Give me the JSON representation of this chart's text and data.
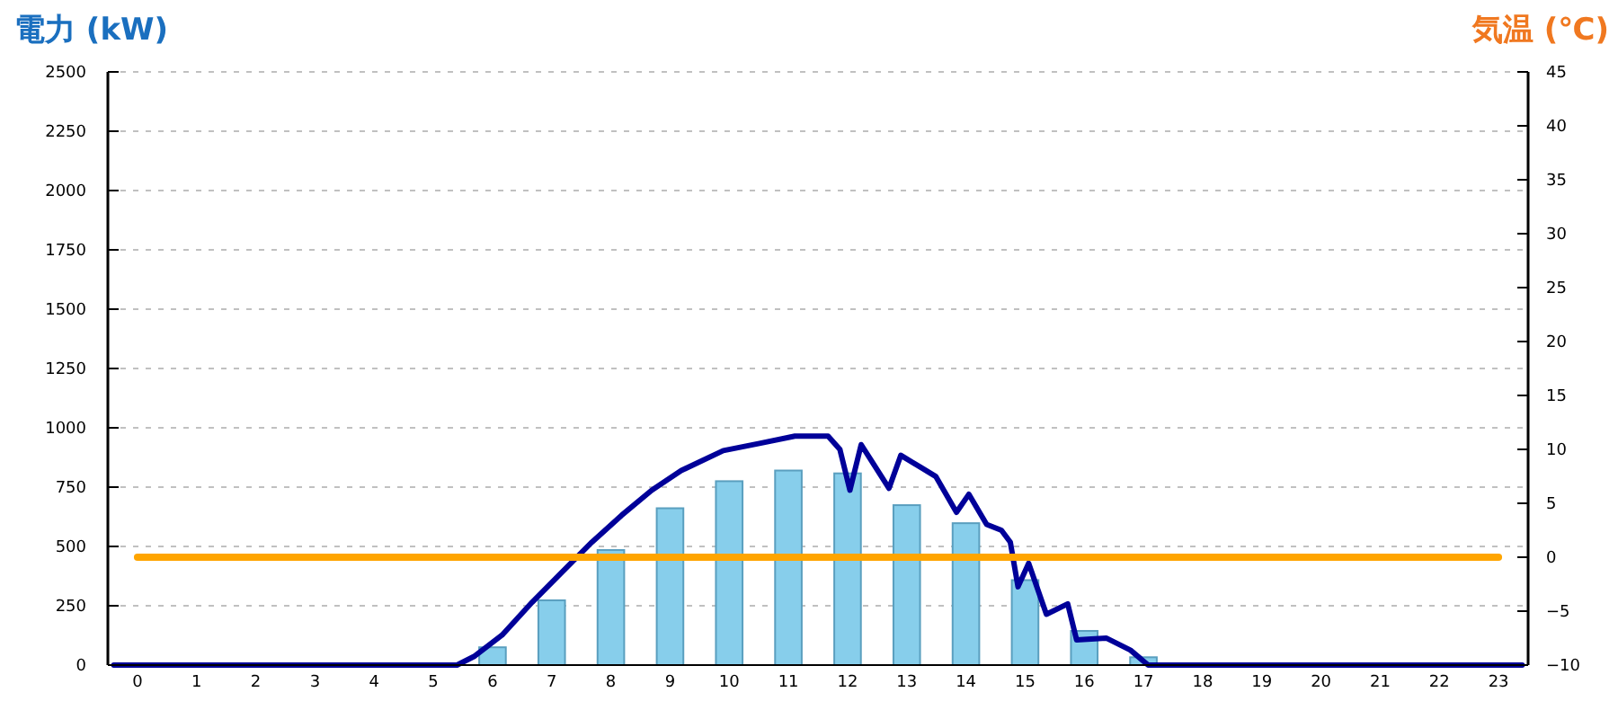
{
  "chart_data": {
    "type": "bar",
    "ylabel": "電力 (kW)",
    "y2label": "気温 (℃)",
    "x": [
      0,
      1,
      2,
      3,
      4,
      5,
      6,
      7,
      8,
      9,
      10,
      11,
      12,
      13,
      14,
      15,
      16,
      17,
      18,
      19,
      20,
      21,
      22,
      23
    ],
    "xlim": [
      -0.5,
      23.5
    ],
    "xticks": [
      0,
      1,
      2,
      3,
      4,
      5,
      6,
      7,
      8,
      9,
      10,
      11,
      12,
      13,
      14,
      15,
      16,
      17,
      18,
      19,
      20,
      21,
      22,
      23
    ],
    "ylim": [
      0,
      2500
    ],
    "yticks": [
      0,
      250,
      500,
      750,
      1000,
      1250,
      1500,
      1750,
      2000,
      2250,
      2500
    ],
    "y2lim": [
      -10,
      45
    ],
    "y2ticks": [
      {
        "value": -10,
        "label": "−10"
      },
      {
        "value": -5,
        "label": "−5"
      },
      0,
      5,
      10,
      15,
      20,
      25,
      30,
      35,
      40,
      45
    ],
    "grid": "y",
    "series": [
      {
        "color": "#87ceeb",
        "values": [
          0,
          0,
          0,
          0,
          0,
          0,
          75,
          273,
          485,
          661,
          775,
          820,
          808,
          674,
          598,
          358,
          144,
          33,
          0,
          0,
          0,
          0,
          0,
          0
        ]
      },
      {
        "type": "line",
        "color": "#000099",
        "x": [
          -0.4,
          5.4,
          5.7,
          6.16,
          6.67,
          7.17,
          7.68,
          8.18,
          8.69,
          9.19,
          9.9,
          10.51,
          11.11,
          11.67,
          11.87,
          12.04,
          12.23,
          12.7,
          12.9,
          13.24,
          13.49,
          13.84,
          14.05,
          14.35,
          14.6,
          14.75,
          14.88,
          15.06,
          15.36,
          15.72,
          15.87,
          16.37,
          16.78,
          17.08,
          23.4
        ],
        "values": [
          0,
          0,
          38,
          126,
          265,
          391,
          518,
          631,
          737,
          820,
          904,
          934,
          965,
          965,
          909,
          737,
          929,
          745,
          884,
          833,
          795,
          644,
          720,
          593,
          568,
          518,
          330,
          429,
          214,
          258,
          106,
          114,
          63,
          0,
          0
        ]
      },
      {
        "type": "line",
        "color": "#ffa500",
        "axis": "y2",
        "values": [
          0,
          0,
          0,
          0,
          0,
          0,
          0,
          0,
          0,
          0,
          0,
          0,
          0,
          0,
          0,
          0,
          0,
          0,
          0,
          0,
          0,
          0,
          0,
          0
        ]
      }
    ]
  }
}
